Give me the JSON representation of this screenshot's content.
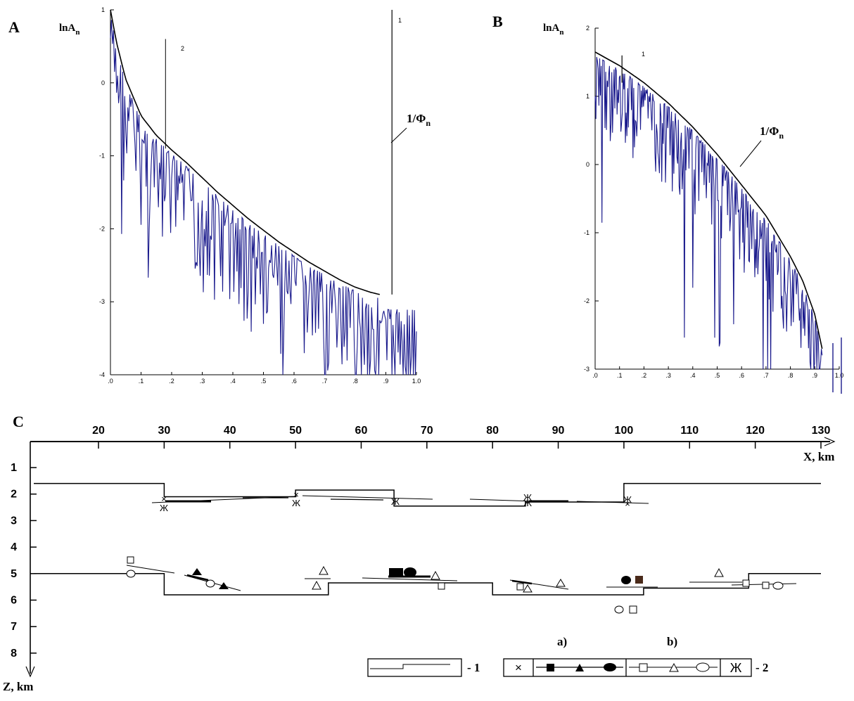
{
  "colors": {
    "trace": "#1a1a8c",
    "curve": "#000000",
    "dark_square": "#4a2a1a"
  },
  "chart_data": [
    {
      "panel": "A",
      "type": "line",
      "ylabel": "lnA",
      "ylabel_sub": "n",
      "curve_label": "1/Φ",
      "curve_label_sub": "n",
      "marker_1": "1",
      "marker_2": "2",
      "xlim": [
        0,
        1.0
      ],
      "ylim": [
        -4,
        1
      ],
      "x_ticks": [
        ".0",
        ".1",
        ".2",
        ".3",
        ".4",
        ".5",
        ".6",
        ".7",
        ".8",
        ".9",
        "1.0"
      ],
      "y_ticks": [
        "1",
        "0",
        "-1",
        "-2",
        "-3",
        "-4"
      ],
      "envelope": {
        "x": [
          0.0,
          0.02,
          0.05,
          0.1,
          0.15,
          0.2,
          0.25,
          0.3,
          0.35,
          0.4,
          0.45,
          0.5,
          0.55,
          0.6,
          0.65,
          0.7,
          0.75,
          0.8,
          0.85,
          0.88
        ],
        "y": [
          1.0,
          0.55,
          0.05,
          -0.45,
          -0.72,
          -0.92,
          -1.1,
          -1.3,
          -1.5,
          -1.68,
          -1.86,
          -2.02,
          -2.18,
          -2.32,
          -2.46,
          -2.58,
          -2.7,
          -2.8,
          -2.87,
          -2.9
        ]
      },
      "vertical_line_1": {
        "x": 0.92,
        "y_from": -2.9,
        "y_to": 1.0
      },
      "vertical_line_2": {
        "x": 0.18,
        "y_from": -0.9,
        "y_to": 0.6
      },
      "trace_seed": 7
    },
    {
      "panel": "B",
      "type": "line",
      "ylabel": "lnA",
      "ylabel_sub": "n",
      "curve_label": "1/Φ",
      "curve_label_sub": "n",
      "marker_1": "1",
      "xlim": [
        0,
        1.0
      ],
      "ylim": [
        -3,
        2
      ],
      "x_ticks": [
        ".0",
        ".1",
        ".2",
        ".3",
        ".4",
        ".5",
        ".6",
        ".7",
        ".8",
        ".9",
        "1.0"
      ],
      "y_ticks": [
        "2",
        "1",
        "0",
        "-1",
        "-2",
        "-3"
      ],
      "envelope": {
        "x": [
          0.0,
          0.1,
          0.2,
          0.3,
          0.4,
          0.5,
          0.6,
          0.7,
          0.8,
          0.85,
          0.9,
          0.93
        ],
        "y": [
          1.65,
          1.45,
          1.2,
          0.9,
          0.55,
          0.15,
          -0.3,
          -0.75,
          -1.35,
          -1.7,
          -2.2,
          -2.7
        ]
      },
      "vertical_line_1": {
        "x": 0.11,
        "y_from": 1.2,
        "y_to": 1.6
      },
      "trace_seed": 13
    },
    {
      "panel": "C",
      "type": "scatter",
      "xlabel": "X, km",
      "ylabel": "Z, km",
      "x_ticks": [
        "20",
        "30",
        "40",
        "50",
        "60",
        "70",
        "80",
        "90",
        "100",
        "110",
        "120",
        "130"
      ],
      "y_ticks": [
        "1",
        "2",
        "3",
        "4",
        "5",
        "6",
        "7",
        "8"
      ],
      "upper_boundary": {
        "x": [
          0,
          30,
          30,
          50,
          50,
          65,
          65,
          85,
          85,
          100,
          100,
          130
        ],
        "z": [
          1.6,
          1.6,
          2.1,
          2.1,
          1.85,
          1.85,
          2.45,
          2.45,
          2.3,
          2.3,
          1.6,
          1.6
        ]
      },
      "lower_boundary": {
        "x": [
          0,
          30,
          30,
          55,
          55,
          80,
          80,
          103,
          103,
          119,
          119,
          130
        ],
        "z": [
          5.0,
          5.0,
          5.8,
          5.8,
          5.35,
          5.35,
          5.8,
          5.8,
          5.55,
          5.55,
          5.0,
          5.0
        ]
      },
      "legend": {
        "label_a": "a)",
        "label_b": "b)",
        "item_1": "- 1",
        "item_2": "- 2"
      }
    }
  ]
}
